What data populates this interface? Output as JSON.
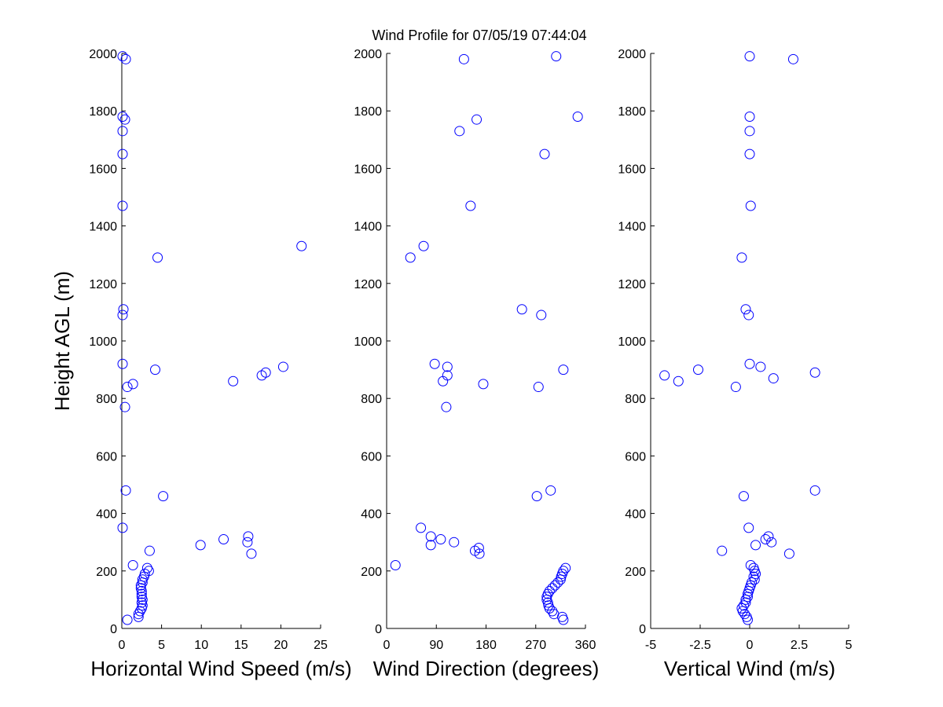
{
  "title": "Wind Profile for  07/05/19 07:44:04",
  "marker_color": "#0000ff",
  "chart_data": [
    {
      "type": "scatter",
      "xlabel": "Horizontal Wind Speed (m/s)",
      "ylabel": "Height AGL (m)",
      "xlim": [
        0,
        25
      ],
      "ylim": [
        0,
        2000
      ],
      "xticks": [
        "0",
        "5",
        "10",
        "15",
        "20",
        "25"
      ],
      "yticks": [
        "0",
        "200",
        "400",
        "600",
        "800",
        "1000",
        "1200",
        "1400",
        "1600",
        "1800",
        "2000"
      ],
      "points": [
        [
          0.1,
          1990
        ],
        [
          0.5,
          1980
        ],
        [
          0.1,
          1780
        ],
        [
          0.4,
          1770
        ],
        [
          0.1,
          1730
        ],
        [
          0.1,
          1650
        ],
        [
          0.1,
          1470
        ],
        [
          22.6,
          1330
        ],
        [
          4.5,
          1290
        ],
        [
          0.2,
          1110
        ],
        [
          0.1,
          1090
        ],
        [
          0.1,
          920
        ],
        [
          20.3,
          910
        ],
        [
          4.2,
          900
        ],
        [
          18.1,
          890
        ],
        [
          17.6,
          880
        ],
        [
          14.0,
          860
        ],
        [
          1.4,
          850
        ],
        [
          0.7,
          840
        ],
        [
          0.4,
          770
        ],
        [
          0.5,
          480
        ],
        [
          5.2,
          460
        ],
        [
          0.1,
          350
        ],
        [
          15.9,
          320
        ],
        [
          12.8,
          310
        ],
        [
          15.8,
          300
        ],
        [
          9.9,
          290
        ],
        [
          3.5,
          270
        ],
        [
          16.3,
          260
        ],
        [
          1.4,
          220
        ],
        [
          3.2,
          210
        ],
        [
          3.4,
          200
        ],
        [
          2.9,
          190
        ],
        [
          2.8,
          180
        ],
        [
          2.6,
          170
        ],
        [
          2.6,
          160
        ],
        [
          2.4,
          150
        ],
        [
          2.4,
          140
        ],
        [
          2.5,
          130
        ],
        [
          2.5,
          120
        ],
        [
          2.5,
          110
        ],
        [
          2.6,
          100
        ],
        [
          2.5,
          90
        ],
        [
          2.6,
          80
        ],
        [
          2.5,
          70
        ],
        [
          2.3,
          60
        ],
        [
          2.1,
          50
        ],
        [
          2.1,
          40
        ],
        [
          0.7,
          30
        ]
      ]
    },
    {
      "type": "scatter",
      "xlabel": "Wind Direction (degrees)",
      "ylabel": "",
      "xlim": [
        0,
        360
      ],
      "ylim": [
        0,
        2000
      ],
      "xticks": [
        "0",
        "90",
        "180",
        "270",
        "360"
      ],
      "yticks": [
        "0",
        "200",
        "400",
        "600",
        "800",
        "1000",
        "1200",
        "1400",
        "1600",
        "1800",
        "2000"
      ],
      "points": [
        [
          307,
          1990
        ],
        [
          140,
          1980
        ],
        [
          346,
          1780
        ],
        [
          163,
          1770
        ],
        [
          132,
          1730
        ],
        [
          286,
          1650
        ],
        [
          152,
          1470
        ],
        [
          67,
          1330
        ],
        [
          43,
          1290
        ],
        [
          245,
          1110
        ],
        [
          280,
          1090
        ],
        [
          87,
          920
        ],
        [
          110,
          910
        ],
        [
          320,
          900
        ],
        [
          110,
          880
        ],
        [
          102,
          860
        ],
        [
          175,
          850
        ],
        [
          275,
          840
        ],
        [
          108,
          770
        ],
        [
          297,
          480
        ],
        [
          272,
          460
        ],
        [
          62,
          350
        ],
        [
          80,
          320
        ],
        [
          98,
          310
        ],
        [
          122,
          300
        ],
        [
          80,
          290
        ],
        [
          167,
          280
        ],
        [
          160,
          270
        ],
        [
          168,
          260
        ],
        [
          16,
          220
        ],
        [
          324,
          210
        ],
        [
          320,
          200
        ],
        [
          318,
          190
        ],
        [
          316,
          180
        ],
        [
          315,
          170
        ],
        [
          310,
          160
        ],
        [
          305,
          150
        ],
        [
          300,
          140
        ],
        [
          295,
          130
        ],
        [
          292,
          120
        ],
        [
          290,
          110
        ],
        [
          290,
          100
        ],
        [
          292,
          90
        ],
        [
          293,
          80
        ],
        [
          295,
          70
        ],
        [
          300,
          60
        ],
        [
          303,
          50
        ],
        [
          318,
          40
        ],
        [
          320,
          30
        ]
      ]
    },
    {
      "type": "scatter",
      "xlabel": "Vertical Wind (m/s)",
      "ylabel": "",
      "xlim": [
        -5,
        5
      ],
      "ylim": [
        0,
        2000
      ],
      "xticks": [
        "-5",
        "-2.5",
        "0",
        "2.5",
        "5"
      ],
      "yticks": [
        "0",
        "200",
        "400",
        "600",
        "800",
        "1000",
        "1200",
        "1400",
        "1600",
        "1800",
        "2000"
      ],
      "points": [
        [
          0.0,
          1990
        ],
        [
          2.2,
          1980
        ],
        [
          0.0,
          1780
        ],
        [
          0.0,
          1730
        ],
        [
          0.0,
          1650
        ],
        [
          0.05,
          1470
        ],
        [
          -0.4,
          1290
        ],
        [
          -0.2,
          1110
        ],
        [
          -0.05,
          1090
        ],
        [
          0.0,
          920
        ],
        [
          0.55,
          910
        ],
        [
          -2.6,
          900
        ],
        [
          3.3,
          890
        ],
        [
          -4.3,
          880
        ],
        [
          1.2,
          870
        ],
        [
          -3.6,
          860
        ],
        [
          -0.7,
          840
        ],
        [
          3.3,
          480
        ],
        [
          -0.3,
          460
        ],
        [
          -0.05,
          350
        ],
        [
          0.95,
          320
        ],
        [
          0.8,
          310
        ],
        [
          1.1,
          300
        ],
        [
          0.3,
          290
        ],
        [
          -1.4,
          270
        ],
        [
          2.0,
          260
        ],
        [
          0.05,
          220
        ],
        [
          0.2,
          210
        ],
        [
          0.25,
          200
        ],
        [
          0.3,
          190
        ],
        [
          0.2,
          180
        ],
        [
          0.25,
          170
        ],
        [
          0.1,
          160
        ],
        [
          0.05,
          150
        ],
        [
          0.0,
          140
        ],
        [
          -0.05,
          130
        ],
        [
          -0.1,
          120
        ],
        [
          -0.1,
          110
        ],
        [
          -0.2,
          100
        ],
        [
          -0.2,
          90
        ],
        [
          -0.3,
          80
        ],
        [
          -0.4,
          70
        ],
        [
          -0.35,
          60
        ],
        [
          -0.25,
          50
        ],
        [
          -0.15,
          40
        ],
        [
          -0.1,
          30
        ]
      ]
    }
  ]
}
